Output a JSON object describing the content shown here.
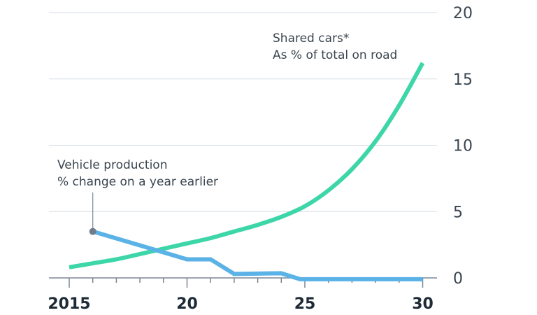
{
  "chart_data": {
    "type": "line",
    "title": "",
    "xlabel": "",
    "ylabel": "",
    "xlim": [
      2014,
      2031
    ],
    "ylim": [
      0,
      20
    ],
    "y_axis_side": "right",
    "grid": "horizontal",
    "y_ticks": [
      0,
      5,
      10,
      15,
      20
    ],
    "y_tick_labels": [
      "0",
      "5",
      "10",
      "15",
      "20"
    ],
    "x_ticks": [
      2015,
      2020,
      2025,
      2030
    ],
    "x_tick_labels": [
      "2015",
      "20",
      "25",
      "30"
    ],
    "series": [
      {
        "name": "Shared cars* As % of total on road",
        "color": "#3dd6a8",
        "x": [
          2015,
          2016,
          2017,
          2018,
          2019,
          2020,
          2021,
          2022,
          2023,
          2024,
          2025,
          2026,
          2027,
          2028,
          2029,
          2030
        ],
        "y": [
          0.8,
          1.1,
          1.4,
          1.8,
          2.2,
          2.6,
          3.0,
          3.5,
          4.0,
          4.6,
          5.4,
          6.6,
          8.2,
          10.3,
          13.0,
          16.2
        ]
      },
      {
        "name": "Vehicle production % change on a year earlier",
        "color": "#5ab2e6",
        "x": [
          2016,
          2020,
          2021,
          2022,
          2024,
          2024.8,
          2030
        ],
        "y": [
          3.5,
          1.4,
          1.4,
          0.3,
          0.35,
          -0.1,
          -0.1
        ]
      }
    ],
    "annotations": [
      {
        "lines": [
          "Shared cars*",
          "As % of total on road"
        ],
        "series": 0
      },
      {
        "lines": [
          "Vehicle production",
          "% change on a year earlier"
        ],
        "series": 1
      }
    ]
  }
}
